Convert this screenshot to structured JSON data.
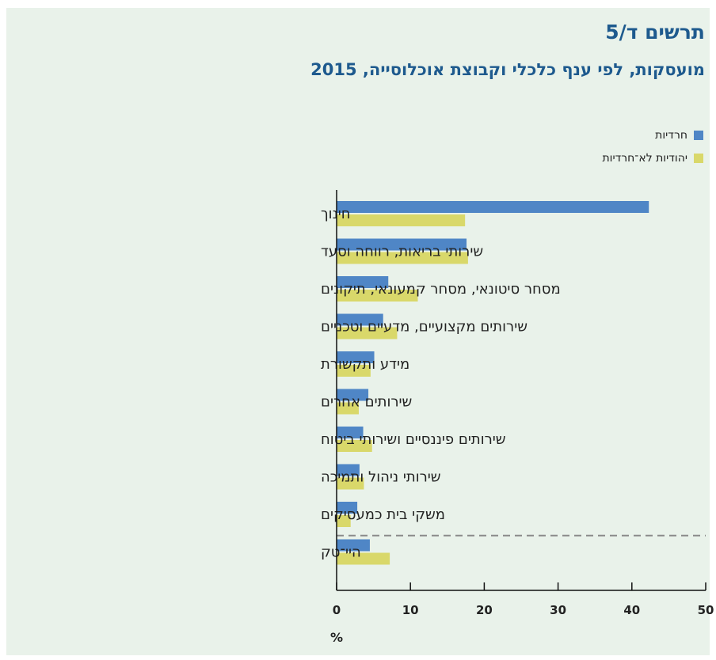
{
  "header": {
    "title": "תרשים ד/5",
    "subtitle": "מועסקות, לפי ענף כלכלי וקבוצת אוכלוסייה, 2015"
  },
  "colors": {
    "background": "#e9f2ea",
    "title": "#1e5a8e",
    "series_haredi": "#4f86c6",
    "series_nonharedi": "#d9d86a",
    "divider": "#8a8a8a"
  },
  "chart_data": {
    "type": "bar",
    "orientation": "horizontal",
    "title": "תרשים ד/5",
    "subtitle": "מועסקות, לפי ענף כלכלי וקבוצת אוכלוסייה, 2015",
    "xlabel": "%",
    "ylabel": "",
    "xlim": [
      0,
      50
    ],
    "xticks": [
      0,
      10,
      20,
      30,
      40,
      50
    ],
    "grid": false,
    "legend_position": "top-right",
    "categories": [
      "חינוך",
      "שירותי בריאות, רווחה וסעד",
      "מסחר סיטונאי, מסחר קמעונאי, תיקונים",
      "שירותים מקצועיים, מדעיים וטכניים",
      "מידע ותקשורת",
      "שירותים אחרים",
      "שירותים פיננסיים ושירותי ביטוח",
      "שירותי ניהול ותמיכה",
      "משקי בית כמעסיקים",
      "היי־טק"
    ],
    "series": [
      {
        "name": "חרדיות",
        "color": "#4f86c6",
        "values": [
          42.3,
          17.6,
          7.0,
          6.3,
          5.1,
          4.3,
          3.6,
          3.1,
          2.8,
          4.5
        ]
      },
      {
        "name": "יהודיות לא־חרדיות",
        "color": "#d9d86a",
        "values": [
          17.4,
          17.8,
          11.0,
          8.2,
          4.6,
          3.0,
          4.8,
          3.7,
          1.9,
          7.2
        ]
      }
    ],
    "annotations": [
      "dashed separator line above the last category (היי־טק)"
    ]
  }
}
